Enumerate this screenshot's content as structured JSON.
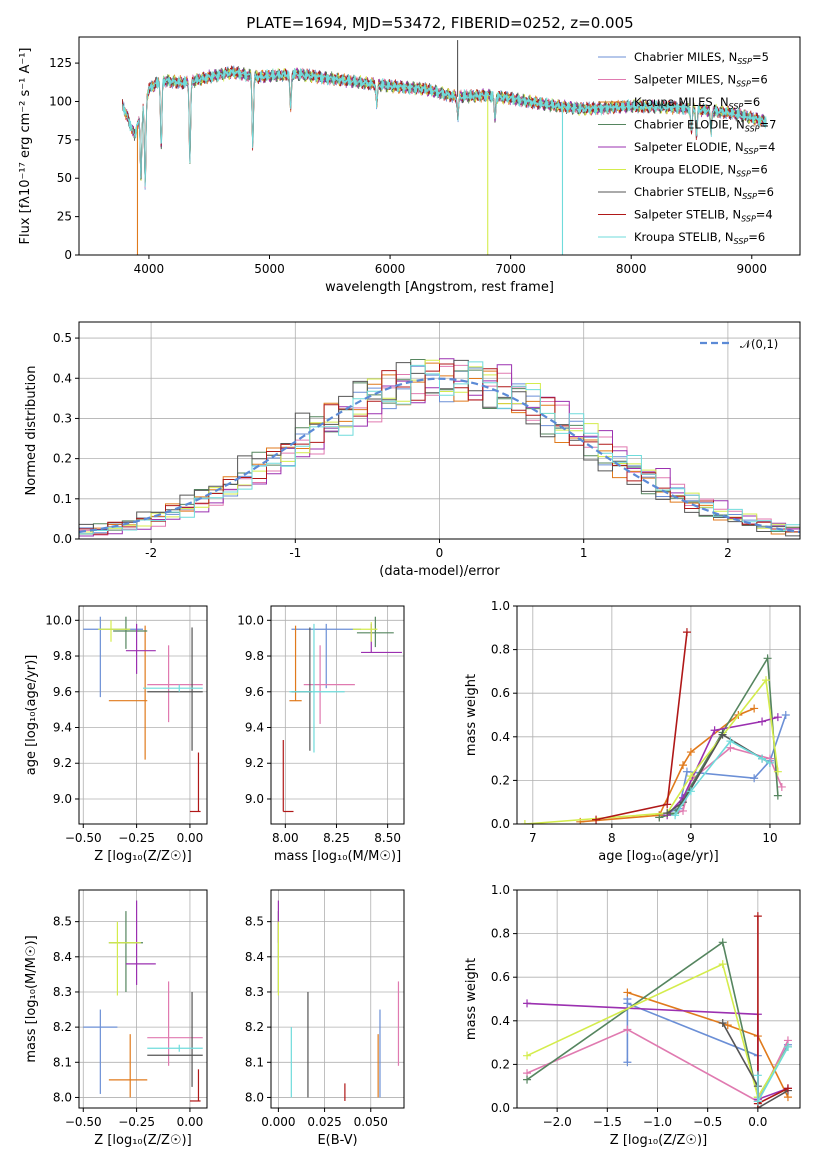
{
  "figure_title": "PLATE=1694, MJD=53472, FIBERID=0252, z=0.005",
  "models": [
    {
      "name": "Chabrier MILES",
      "nssp": "5",
      "color": "#6b8fd6"
    },
    {
      "name": "Salpeter MILES",
      "nssp": "6",
      "color": "#e07ab0"
    },
    {
      "name": "Kroupa MILES",
      "nssp": "6",
      "color": "#e07a1c"
    },
    {
      "name": "Chabrier ELODIE",
      "nssp": "7",
      "color": "#55855f"
    },
    {
      "name": "Salpeter ELODIE",
      "nssp": "4",
      "color": "#9b30b0"
    },
    {
      "name": "Kroupa ELODIE",
      "nssp": "6",
      "color": "#d4ec4c"
    },
    {
      "name": "Chabrier STELIB",
      "nssp": "6",
      "color": "#555555"
    },
    {
      "name": "Salpeter STELIB",
      "nssp": "4",
      "color": "#b01818"
    },
    {
      "name": "Kroupa STELIB",
      "nssp": "6",
      "color": "#6fdbdb"
    }
  ],
  "chart_data": [
    {
      "id": "spectrum",
      "type": "line",
      "xlabel": "wavelength [Angstrom, rest frame]",
      "ylabel": "Flux [fλ10⁻¹⁷ erg cm⁻² s⁻¹ A⁻¹]",
      "xlim": [
        3420,
        9400
      ],
      "ylim": [
        0,
        142
      ],
      "xticks": [
        4000,
        5000,
        6000,
        7000,
        8000,
        9000
      ],
      "yticks": [
        0,
        25,
        50,
        75,
        100,
        125
      ],
      "x_range_data": [
        3780,
        9120
      ],
      "continuum_points": [
        [
          3780,
          98
        ],
        [
          3880,
          78
        ],
        [
          4000,
          108
        ],
        [
          4100,
          114
        ],
        [
          4300,
          112
        ],
        [
          4500,
          116
        ],
        [
          4700,
          119
        ],
        [
          4900,
          116
        ],
        [
          5200,
          118
        ],
        [
          5500,
          115
        ],
        [
          5800,
          112
        ],
        [
          6000,
          110
        ],
        [
          6300,
          108
        ],
        [
          6550,
          103
        ],
        [
          6800,
          104
        ],
        [
          7000,
          102
        ],
        [
          7300,
          98
        ],
        [
          7600,
          95
        ],
        [
          8000,
          97
        ],
        [
          8400,
          96
        ],
        [
          8800,
          93
        ],
        [
          9120,
          87
        ]
      ],
      "absorption_lines": [
        [
          3934,
          50
        ],
        [
          3969,
          45
        ],
        [
          4102,
          70
        ],
        [
          4340,
          62
        ],
        [
          4861,
          72
        ],
        [
          5175,
          95
        ],
        [
          5890,
          98
        ],
        [
          6563,
          90
        ],
        [
          6870,
          88
        ],
        [
          8500,
          80
        ],
        [
          8542,
          78
        ],
        [
          8662,
          80
        ]
      ],
      "outlier_spikes": [
        {
          "x": 3905,
          "y": 0
        },
        {
          "x": 6810,
          "y": 0
        },
        {
          "x": 7430,
          "y": 0
        },
        {
          "x": 6560,
          "y": 140
        }
      ],
      "legend": "upper right"
    },
    {
      "id": "residual_hist",
      "type": "histogram",
      "xlabel": "(data-model)/error",
      "ylabel": "Normed distribution",
      "xlim": [
        -2.5,
        2.5
      ],
      "ylim": [
        0,
        0.54
      ],
      "xticks": [
        -2,
        -1,
        0,
        1,
        2
      ],
      "yticks": [
        0.0,
        0.1,
        0.2,
        0.3,
        0.4,
        0.5
      ],
      "reference": {
        "label": "𝒩(0,1)",
        "mu": 0,
        "sigma": 1,
        "color": "#5b8ad6"
      },
      "bins": {
        "start": -2.5,
        "width": 0.1,
        "count": 50
      },
      "legend": "upper right"
    },
    {
      "id": "Z_age",
      "type": "errorbar",
      "xlabel": "Z [log₁₀(Z/Z☉)]",
      "ylabel": "age  [log₁₀(age/yr)]",
      "xlim": [
        -0.52,
        0.08
      ],
      "ylim": [
        8.86,
        10.08
      ],
      "xticks": [
        -0.5,
        -0.25,
        0.0
      ],
      "xticklabels": [
        "−0.50",
        "−0.25",
        "0.00"
      ],
      "yticks": [
        9.0,
        9.2,
        9.4,
        9.6,
        9.8,
        10.0
      ],
      "points": [
        {
          "m": 0,
          "x": -0.42,
          "xl": -0.5,
          "xh": -0.22,
          "y": 9.95,
          "yl": 9.57,
          "yh": 10.02
        },
        {
          "m": 1,
          "x": -0.1,
          "xl": -0.2,
          "xh": 0.06,
          "y": 9.64,
          "yl": 9.43,
          "yh": 9.86
        },
        {
          "m": 2,
          "x": -0.21,
          "xl": -0.38,
          "xh": -0.2,
          "y": 9.55,
          "yl": 9.22,
          "yh": 9.97
        },
        {
          "m": 3,
          "x": -0.3,
          "xl": -0.36,
          "xh": -0.2,
          "y": 9.94,
          "yl": 9.84,
          "yh": 10.02
        },
        {
          "m": 4,
          "x": -0.25,
          "xl": -0.3,
          "xh": -0.16,
          "y": 9.83,
          "yl": 9.7,
          "yh": 9.98
        },
        {
          "m": 5,
          "x": -0.37,
          "xl": -0.43,
          "xh": -0.28,
          "y": 9.95,
          "yl": 9.88,
          "yh": 10.0
        },
        {
          "m": 6,
          "x": 0.01,
          "xl": -0.2,
          "xh": 0.06,
          "y": 9.6,
          "yl": 9.27,
          "yh": 9.96
        },
        {
          "m": 7,
          "x": 0.04,
          "xl": 0.0,
          "xh": 0.05,
          "y": 8.93,
          "yl": 8.93,
          "yh": 9.26
        },
        {
          "m": 8,
          "x": -0.05,
          "xl": -0.22,
          "xh": 0.06,
          "y": 9.62,
          "yl": 9.6,
          "yh": 9.64
        }
      ]
    },
    {
      "id": "mass_age",
      "type": "errorbar",
      "xlabel": "mass [log₁₀(M/M☉)]",
      "ylabel": "",
      "xlim": [
        7.93,
        8.58
      ],
      "ylim": [
        8.86,
        10.08
      ],
      "xticks": [
        8.0,
        8.25,
        8.5
      ],
      "xticklabels": [
        "8.00",
        "8.25",
        "8.50"
      ],
      "yticks": [
        9.0,
        9.2,
        9.4,
        9.6,
        9.8,
        10.0
      ],
      "points": [
        {
          "m": 0,
          "x": 8.2,
          "xl": 8.03,
          "xh": 8.37,
          "y": 9.95,
          "yl": 9.62,
          "yh": 9.98
        },
        {
          "m": 1,
          "x": 8.17,
          "xl": 8.09,
          "xh": 8.34,
          "y": 9.64,
          "yl": 9.42,
          "yh": 9.86
        },
        {
          "m": 2,
          "x": 8.05,
          "xl": 8.02,
          "xh": 8.08,
          "y": 9.55,
          "yl": 9.55,
          "yh": 9.97
        },
        {
          "m": 3,
          "x": 8.44,
          "xl": 8.35,
          "xh": 8.53,
          "y": 9.93,
          "yl": 9.85,
          "yh": 10.02
        },
        {
          "m": 4,
          "x": 8.42,
          "xl": 8.37,
          "xh": 8.57,
          "y": 9.82,
          "yl": 9.82,
          "yh": 9.98
        },
        {
          "m": 5,
          "x": 8.42,
          "xl": 8.33,
          "xh": 8.45,
          "y": 9.95,
          "yl": 9.88,
          "yh": 9.99
        },
        {
          "m": 6,
          "x": 8.12,
          "xl": 8.03,
          "xh": 8.13,
          "y": 9.6,
          "yl": 9.27,
          "yh": 9.96
        },
        {
          "m": 7,
          "x": 7.99,
          "xl": 7.99,
          "xh": 8.04,
          "y": 8.93,
          "yl": 8.93,
          "yh": 9.33
        },
        {
          "m": 8,
          "x": 8.14,
          "xl": 8.02,
          "xh": 8.29,
          "y": 9.6,
          "yl": 9.26,
          "yh": 9.98
        }
      ]
    },
    {
      "id": "age_weight",
      "type": "line",
      "xlabel": "age  [log₁₀(age/yr)]",
      "ylabel": "mass weight",
      "xlim": [
        6.8,
        10.38
      ],
      "ylim": [
        0,
        1.0
      ],
      "xticks": [
        7,
        8,
        9,
        10
      ],
      "yticks": [
        0.0,
        0.2,
        0.4,
        0.6,
        0.8,
        1.0
      ],
      "series": [
        {
          "m": 0,
          "x": [
            8.6,
            8.85,
            8.95,
            9.8,
            10.0,
            10.2
          ],
          "y": [
            0.04,
            0.07,
            0.24,
            0.21,
            0.29,
            0.5
          ]
        },
        {
          "m": 1,
          "x": [
            8.6,
            8.9,
            9.0,
            9.5,
            10.0,
            10.15
          ],
          "y": [
            0.03,
            0.06,
            0.2,
            0.35,
            0.3,
            0.17
          ]
        },
        {
          "m": 2,
          "x": [
            7.6,
            8.6,
            8.9,
            9.0,
            9.6,
            9.8
          ],
          "y": [
            0.01,
            0.04,
            0.27,
            0.33,
            0.5,
            0.53
          ]
        },
        {
          "m": 3,
          "x": [
            8.6,
            8.8,
            9.4,
            9.97,
            10.1
          ],
          "y": [
            0.03,
            0.05,
            0.42,
            0.76,
            0.13
          ]
        },
        {
          "m": 4,
          "x": [
            8.7,
            8.9,
            9.3,
            9.9,
            10.1
          ],
          "y": [
            0.04,
            0.12,
            0.43,
            0.47,
            0.49
          ]
        },
        {
          "m": 5,
          "x": [
            6.9,
            8.7,
            9.0,
            9.95,
            10.1
          ],
          "y": [
            0.0,
            0.05,
            0.22,
            0.66,
            0.24
          ]
        },
        {
          "m": 6,
          "x": [
            8.7,
            8.9,
            9.4,
            9.9,
            10.0
          ],
          "y": [
            0.05,
            0.1,
            0.41,
            0.3,
            0.28
          ]
        },
        {
          "m": 7,
          "x": [
            7.8,
            8.7,
            8.95
          ],
          "y": [
            0.02,
            0.09,
            0.88
          ]
        },
        {
          "m": 8,
          "x": [
            8.8,
            9.0,
            9.5,
            9.9,
            10.0
          ],
          "y": [
            0.04,
            0.15,
            0.38,
            0.3,
            0.28
          ]
        }
      ]
    },
    {
      "id": "Z_mass",
      "type": "errorbar",
      "xlabel": "Z [log₁₀(Z/Z☉)]",
      "ylabel": "mass [log₁₀(M/M☉)]",
      "xlim": [
        -0.52,
        0.08
      ],
      "ylim": [
        7.97,
        8.59
      ],
      "xticks": [
        -0.5,
        -0.25,
        0.0
      ],
      "xticklabels": [
        "−0.50",
        "−0.25",
        "0.00"
      ],
      "yticks": [
        8.0,
        8.1,
        8.2,
        8.3,
        8.4,
        8.5
      ],
      "points": [
        {
          "m": 0,
          "x": -0.42,
          "xl": -0.5,
          "xh": -0.34,
          "y": 8.2,
          "yl": 8.01,
          "yh": 8.25
        },
        {
          "m": 1,
          "x": -0.1,
          "xl": -0.2,
          "xh": 0.06,
          "y": 8.17,
          "yl": 8.09,
          "yh": 8.33
        },
        {
          "m": 2,
          "x": -0.28,
          "xl": -0.38,
          "xh": -0.2,
          "y": 8.05,
          "yl": 8.0,
          "yh": 8.18
        },
        {
          "m": 3,
          "x": -0.3,
          "xl": -0.38,
          "xh": -0.22,
          "y": 8.44,
          "yl": 8.3,
          "yh": 8.53
        },
        {
          "m": 4,
          "x": -0.25,
          "xl": -0.3,
          "xh": -0.16,
          "y": 8.38,
          "yl": 8.32,
          "yh": 8.56
        },
        {
          "m": 5,
          "x": -0.34,
          "xl": -0.38,
          "xh": -0.23,
          "y": 8.44,
          "yl": 8.29,
          "yh": 8.5
        },
        {
          "m": 6,
          "x": 0.01,
          "xl": -0.2,
          "xh": 0.06,
          "y": 8.12,
          "yl": 8.03,
          "yh": 8.3
        },
        {
          "m": 7,
          "x": 0.04,
          "xl": 0.0,
          "xh": 0.05,
          "y": 7.99,
          "yl": 7.99,
          "yh": 8.08
        },
        {
          "m": 8,
          "x": -0.05,
          "xl": -0.2,
          "xh": 0.06,
          "y": 8.14,
          "yl": 8.13,
          "yh": 8.15
        }
      ]
    },
    {
      "id": "ebv_mass",
      "type": "errorbar",
      "xlabel": "E(B-V)",
      "ylabel": "",
      "xlim": [
        -0.004,
        0.068
      ],
      "ylim": [
        7.97,
        8.59
      ],
      "xticks": [
        0.0,
        0.025,
        0.05
      ],
      "xticklabels": [
        "0.000",
        "0.025",
        "0.050"
      ],
      "yticks": [
        8.0,
        8.1,
        8.2,
        8.3,
        8.4,
        8.5
      ],
      "points": [
        {
          "m": 0,
          "x": 0.055,
          "yl": 8.0,
          "yh": 8.25
        },
        {
          "m": 1,
          "x": 0.065,
          "yl": 8.09,
          "yh": 8.33
        },
        {
          "m": 2,
          "x": 0.054,
          "yl": 8.0,
          "yh": 8.18
        },
        {
          "m": 3,
          "x": 0.0,
          "yl": 8.3,
          "yh": 8.53
        },
        {
          "m": 4,
          "x": 0.0,
          "yl": 8.44,
          "yh": 8.56
        },
        {
          "m": 5,
          "x": 0.0,
          "yl": 8.29,
          "yh": 8.5
        },
        {
          "m": 6,
          "x": 0.016,
          "yl": 8.0,
          "yh": 8.3
        },
        {
          "m": 7,
          "x": 0.036,
          "yl": 7.99,
          "yh": 8.04
        },
        {
          "m": 8,
          "x": 0.007,
          "yl": 8.0,
          "yh": 8.2
        }
      ]
    },
    {
      "id": "Z_weight",
      "type": "line",
      "xlabel": "Z [log₁₀(Z/Z☉)]",
      "ylabel": "mass weight",
      "xlim": [
        -2.4,
        0.42
      ],
      "ylim": [
        0,
        1.0
      ],
      "xticks": [
        -2.0,
        -1.5,
        -1.0,
        -0.5,
        0.0
      ],
      "xticklabels": [
        "−2.0",
        "−1.5",
        "−1.0",
        "−0.5",
        "0.0"
      ],
      "yticks": [
        0.0,
        0.2,
        0.4,
        0.6,
        0.8,
        1.0
      ],
      "series": [
        {
          "m": 0,
          "x": [
            -1.3,
            -1.3,
            -1.3,
            0.0,
            0.0,
            0.3
          ],
          "y": [
            0.21,
            0.5,
            0.48,
            0.24,
            0.03,
            0.29
          ]
        },
        {
          "m": 1,
          "x": [
            -2.3,
            -1.3,
            0.0,
            0.3
          ],
          "y": [
            0.16,
            0.36,
            0.03,
            0.31
          ]
        },
        {
          "m": 2,
          "x": [
            -1.3,
            -0.3,
            0.0,
            0.3
          ],
          "y": [
            0.53,
            0.38,
            0.33,
            0.05
          ]
        },
        {
          "m": 3,
          "x": [
            -2.3,
            -0.35,
            0.0,
            0.3
          ],
          "y": [
            0.13,
            0.76,
            0.05,
            0.28
          ]
        },
        {
          "m": 4,
          "x": [
            -2.3,
            0.0,
            0.0,
            0.3
          ],
          "y": [
            0.48,
            0.43,
            0.04,
            0.09
          ]
        },
        {
          "m": 5,
          "x": [
            -2.3,
            -0.35,
            0.0,
            0.3
          ],
          "y": [
            0.24,
            0.66,
            0.05,
            0.28
          ]
        },
        {
          "m": 6,
          "x": [
            -0.35,
            0.0,
            0.0,
            0.3
          ],
          "y": [
            0.39,
            0.1,
            0.0,
            0.08
          ]
        },
        {
          "m": 7,
          "x": [
            0.0,
            0.0,
            0.3
          ],
          "y": [
            0.88,
            0.02,
            0.09
          ]
        },
        {
          "m": 8,
          "x": [
            0.0,
            0.0,
            0.3
          ],
          "y": [
            0.15,
            0.03,
            0.28
          ]
        }
      ]
    }
  ]
}
